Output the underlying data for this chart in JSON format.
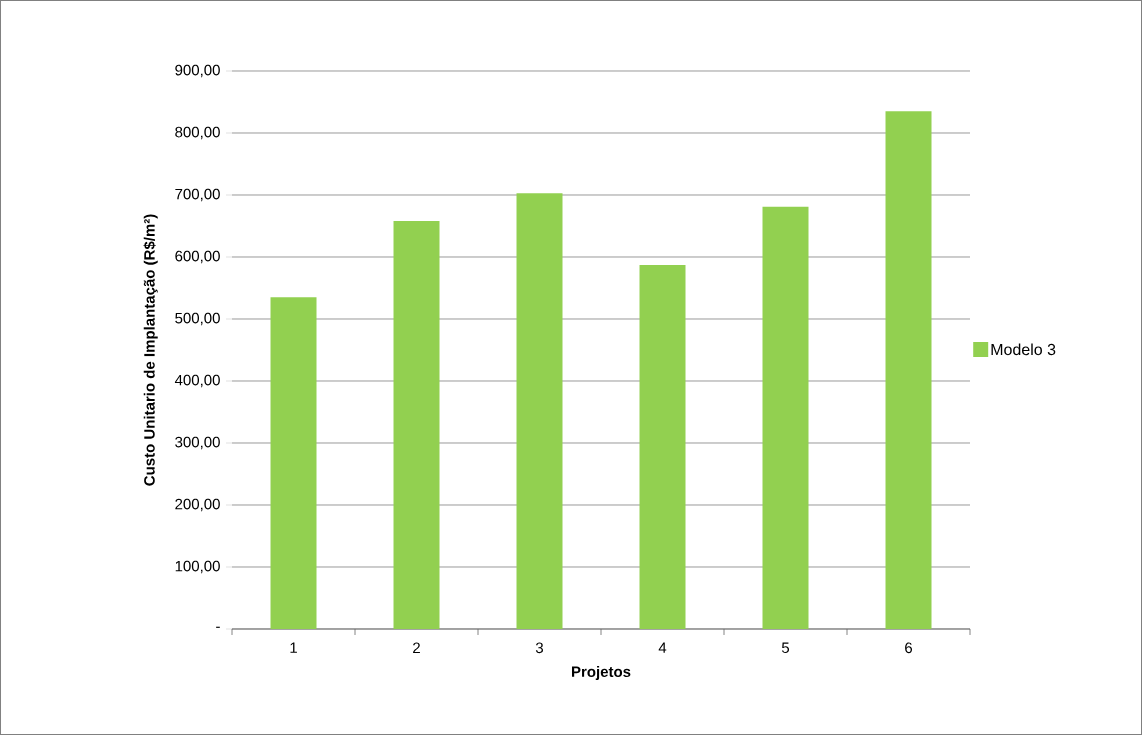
{
  "chart_data": {
    "type": "bar",
    "xlabel": "Projetos",
    "ylabel": "Custo Unitario de Implantação (R$/m²)",
    "categories": [
      "1",
      "2",
      "3",
      "4",
      "5",
      "6"
    ],
    "series": [
      {
        "name": "Modelo 3",
        "color": "#92d050",
        "values": [
          535,
          658,
          703,
          587,
          681,
          835
        ]
      }
    ],
    "ylim": [
      0,
      900
    ],
    "yticks": [
      {
        "value": 0,
        "label": "-"
      },
      {
        "value": 100,
        "label": "100,00"
      },
      {
        "value": 200,
        "label": "200,00"
      },
      {
        "value": 300,
        "label": "300,00"
      },
      {
        "value": 400,
        "label": "400,00"
      },
      {
        "value": 500,
        "label": "500,00"
      },
      {
        "value": 600,
        "label": "600,00"
      },
      {
        "value": 700,
        "label": "700,00"
      },
      {
        "value": 800,
        "label": "800,00"
      },
      {
        "value": 900,
        "label": "900,00"
      }
    ],
    "grid": "y",
    "legend": "right"
  }
}
